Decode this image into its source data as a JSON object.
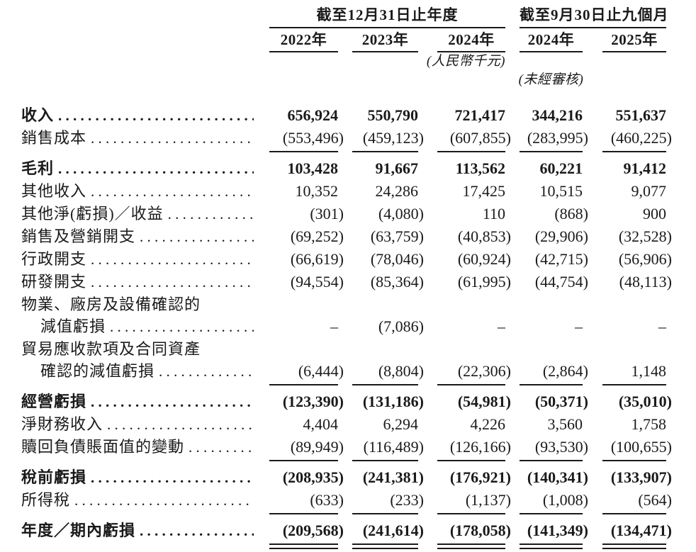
{
  "page": {
    "background": "#ffffff",
    "text_color": "#1a1a1a",
    "rule_color": "#1a1a1a"
  },
  "table": {
    "col_groups": [
      {
        "title": "截至12月31日止年度"
      },
      {
        "title": "截至9月30日止九個月"
      }
    ],
    "col_headers": [
      "2022年",
      "2023年",
      "2024年",
      "2024年",
      "2025年"
    ],
    "notes": {
      "currency": "(人民幣千元)",
      "unaudited": "(未經審核)"
    },
    "rows": [
      {
        "label": "收入",
        "bold": true,
        "values": [
          "656,924",
          "550,790",
          "721,417",
          "344,216",
          "551,637"
        ]
      },
      {
        "label": "銷售成本",
        "values": [
          "(553,496)",
          "(459,123)",
          "(607,855)",
          "(283,995)",
          "(460,225)"
        ]
      },
      {
        "type": "rule"
      },
      {
        "label": "毛利",
        "bold": true,
        "values": [
          "103,428",
          "91,667",
          "113,562",
          "60,221",
          "91,412"
        ]
      },
      {
        "label": "其他收入",
        "values": [
          "10,352",
          "24,286",
          "17,425",
          "10,515",
          "9,077"
        ]
      },
      {
        "label": "其他淨(虧損)／收益",
        "values": [
          "(301)",
          "(4,080)",
          "110",
          "(868)",
          "900"
        ]
      },
      {
        "label": "銷售及營銷開支",
        "values": [
          "(69,252)",
          "(63,759)",
          "(40,853)",
          "(29,906)",
          "(32,528)"
        ]
      },
      {
        "label": "行政開支",
        "values": [
          "(66,619)",
          "(78,046)",
          "(60,924)",
          "(42,715)",
          "(56,906)"
        ]
      },
      {
        "label": "研發開支",
        "values": [
          "(94,554)",
          "(85,364)",
          "(61,995)",
          "(44,754)",
          "(48,113)"
        ]
      },
      {
        "label": "物業、廠房及設備確認的"
      },
      {
        "label": "減值虧損",
        "indent": true,
        "values": [
          "–",
          "(7,086)",
          "–",
          "–",
          "–"
        ]
      },
      {
        "label": "貿易應收款項及合同資產"
      },
      {
        "label": "確認的減值虧損",
        "indent": true,
        "values": [
          "(6,444)",
          "(8,804)",
          "(22,306)",
          "(2,864)",
          "1,148"
        ]
      },
      {
        "type": "rule"
      },
      {
        "label": "經營虧損",
        "bold": true,
        "values": [
          "(123,390)",
          "(131,186)",
          "(54,981)",
          "(50,371)",
          "(35,010)"
        ]
      },
      {
        "label": "淨財務收入",
        "values": [
          "4,404",
          "6,294",
          "4,226",
          "3,560",
          "1,758"
        ]
      },
      {
        "label": "贖回負債賬面值的變動",
        "values": [
          "(89,949)",
          "(116,489)",
          "(126,166)",
          "(93,530)",
          "(100,655)"
        ]
      },
      {
        "type": "rule"
      },
      {
        "label": "稅前虧損",
        "bold": true,
        "values": [
          "(208,935)",
          "(241,381)",
          "(176,921)",
          "(140,341)",
          "(133,907)"
        ]
      },
      {
        "label": "所得稅",
        "values": [
          "(633)",
          "(233)",
          "(1,137)",
          "(1,008)",
          "(564)"
        ]
      },
      {
        "type": "rule"
      },
      {
        "label": "年度／期內虧損",
        "bold": true,
        "values": [
          "(209,568)",
          "(241,614)",
          "(178,058)",
          "(141,349)",
          "(134,471)"
        ]
      },
      {
        "type": "double-rule"
      }
    ]
  }
}
